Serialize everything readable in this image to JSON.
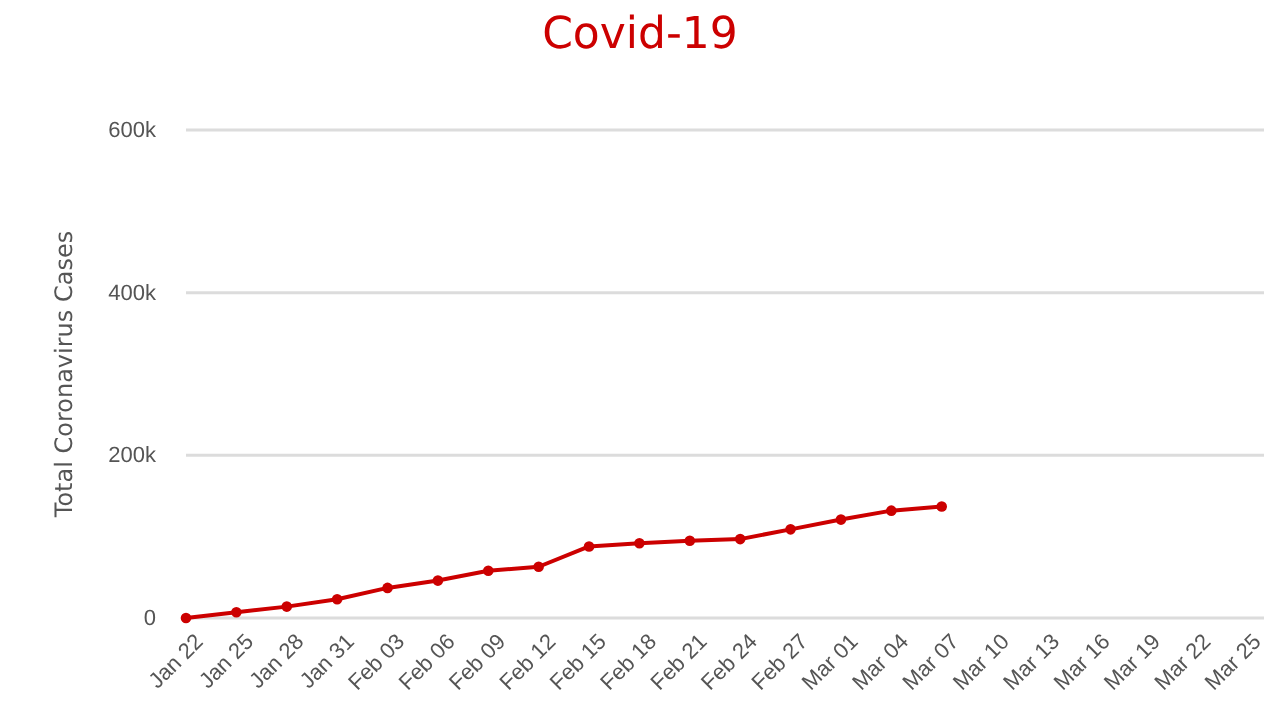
{
  "chart_data": {
    "type": "line",
    "title": "Covid-19",
    "ylabel": "Total Coronavirus Cases",
    "categories": [
      "Jan 22",
      "Jan 25",
      "Jan 28",
      "Jan 31",
      "Feb 03",
      "Feb 06",
      "Feb 09",
      "Feb 12",
      "Feb 15",
      "Feb 18",
      "Feb 21",
      "Feb 24",
      "Feb 27",
      "Mar 01",
      "Mar 04",
      "Mar 07",
      "Mar 10",
      "Mar 13",
      "Mar 16",
      "Mar 19",
      "Mar 22",
      "Mar 25"
    ],
    "series": [
      {
        "color": "#cc0000",
        "values": [
          0,
          7000,
          14000,
          23000,
          37000,
          46000,
          58000,
          63000,
          88000,
          92000,
          95000,
          97000,
          109000,
          121000,
          132000,
          137000,
          null,
          null,
          null,
          null,
          null,
          null
        ]
      }
    ],
    "ylim": [
      0,
      600000
    ],
    "yticks": [
      {
        "value": 0,
        "label": "0"
      },
      {
        "value": 200000,
        "label": "200k"
      },
      {
        "value": 400000,
        "label": "400k"
      },
      {
        "value": 600000,
        "label": "600k"
      }
    ],
    "grid": "y",
    "marker": "circle"
  }
}
